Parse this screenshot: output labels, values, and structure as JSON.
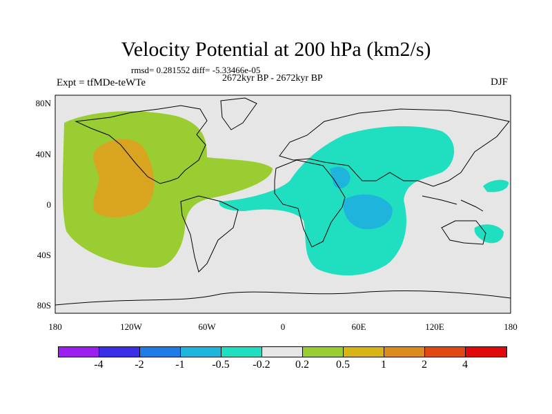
{
  "figure": {
    "title": "Velocity Potential at 200 hPa (km2/s)",
    "stats": "rmsd= 0.281552  diff= -5.33466e-05",
    "period": "2672kyr BP - 2672kyr BP",
    "experiment": "Expt = tfMDe-teWTe",
    "season": "DJF"
  },
  "map": {
    "projection": "cylindrical equidistant",
    "lat_ticks": [
      "80N",
      "40N",
      "0",
      "40S",
      "80S"
    ],
    "lon_ticks": [
      "180",
      "120W",
      "60W",
      "0",
      "60E",
      "120E",
      "180"
    ],
    "colors": {
      "background": "#e6e6e6",
      "coast": "#000000"
    },
    "regions": [
      {
        "name": "pacific-americas-positive",
        "level": "0.2 to 0.5",
        "color": "#9ACD32"
      },
      {
        "name": "east-pacific-max",
        "level": "0.5 to 1",
        "color": "#D9A520"
      },
      {
        "name": "eastern-hemisphere-negative",
        "level": "-0.5 to -0.2",
        "color": "#20DFC0"
      },
      {
        "name": "arabia-indian-ocean-min",
        "level": "-1 to -0.5",
        "color": "#1EB4DC"
      },
      {
        "name": "west-pacific-negative-north",
        "level": "-0.5 to -0.2",
        "color": "#20DFC0"
      },
      {
        "name": "west-pacific-negative-south",
        "level": "-0.5 to -0.2",
        "color": "#20DFC0"
      }
    ]
  },
  "colorbar": {
    "colors": [
      "#9B20F0",
      "#3A2EE6",
      "#1E7CE6",
      "#1EB4DC",
      "#20DFC0",
      "#e6e6e6",
      "#9ACD32",
      "#D9B418",
      "#DD8A1E",
      "#E04A12",
      "#E00A0A"
    ],
    "labels": [
      "-4",
      "-2",
      "-1",
      "-0.5",
      "-0.2",
      "0.2",
      "0.5",
      "1",
      "2",
      "4"
    ]
  }
}
